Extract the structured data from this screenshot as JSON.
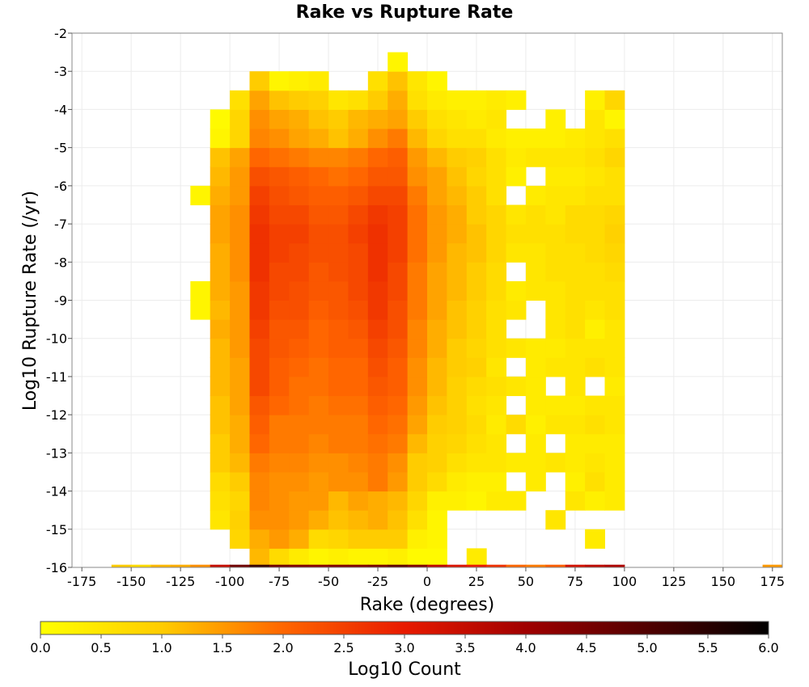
{
  "chart_data": {
    "type": "heatmap",
    "title": "Rake vs Rupture Rate",
    "xlabel": "Rake (degrees)",
    "ylabel": "Log10 Rupture Rate (/yr)",
    "xlim": [
      -180,
      180
    ],
    "ylim": [
      -16,
      -2
    ],
    "x_ticks": [
      -175,
      -150,
      -125,
      -100,
      -75,
      -50,
      -25,
      0,
      25,
      50,
      75,
      100,
      125,
      150,
      175
    ],
    "y_ticks": [
      -2,
      -3,
      -4,
      -5,
      -6,
      -7,
      -8,
      -9,
      -10,
      -11,
      -12,
      -13,
      -14,
      -15,
      -16
    ],
    "x_bin_width": 10,
    "y_bin_width": 0.5,
    "x_columns": [
      -115,
      -105,
      -95,
      -85,
      -75,
      -65,
      -55,
      -45,
      -35,
      -25,
      -15,
      -5,
      5,
      15,
      25,
      35,
      45,
      55,
      65,
      75,
      85,
      95
    ],
    "y_rows": [
      -15.75,
      -15.25,
      -14.75,
      -14.25,
      -13.75,
      -13.25,
      -12.75,
      -12.25,
      -11.75,
      -11.25,
      -10.75,
      -10.25,
      -9.75,
      -9.25,
      -8.75,
      -8.25,
      -7.75,
      -7.25,
      -6.75,
      -6.25,
      -5.75,
      -5.25,
      -4.75,
      -4.25,
      -3.75,
      -3.25,
      -2.75
    ],
    "grid": "x_columns left to right, y_rows bottom to top; value = Log10 Count, null = empty bin",
    "values": [
      [
        null,
        null,
        null,
        1.2,
        0.7,
        0.4,
        0.2,
        0.3,
        0.2,
        0.2,
        0.3,
        0.1,
        0.1,
        null,
        0.4,
        null,
        null,
        null,
        null,
        null,
        null,
        null
      ],
      [
        null,
        null,
        0.8,
        1.3,
        1.5,
        1.3,
        0.7,
        0.8,
        1.0,
        1.0,
        1.0,
        0.3,
        0.2,
        null,
        null,
        null,
        null,
        null,
        null,
        null,
        0.4,
        null
      ],
      [
        null,
        0.5,
        0.9,
        1.6,
        1.6,
        1.5,
        1.3,
        1.1,
        1.2,
        1.3,
        1.1,
        0.6,
        0.2,
        null,
        null,
        null,
        null,
        null,
        0.5,
        null,
        null,
        null
      ],
      [
        null,
        0.6,
        0.8,
        1.7,
        1.6,
        1.5,
        1.5,
        1.2,
        1.4,
        1.3,
        1.2,
        0.8,
        0.3,
        0.3,
        0.2,
        0.4,
        0.4,
        null,
        null,
        0.5,
        0.3,
        0.4
      ],
      [
        null,
        0.7,
        1.0,
        1.7,
        1.6,
        1.6,
        1.5,
        1.6,
        1.6,
        1.8,
        1.5,
        1.0,
        0.7,
        0.4,
        0.3,
        0.3,
        null,
        0.4,
        null,
        0.3,
        0.6,
        0.4
      ],
      [
        null,
        1.0,
        1.2,
        1.8,
        1.7,
        1.7,
        1.6,
        1.6,
        1.7,
        1.8,
        1.6,
        1.0,
        0.9,
        0.6,
        0.5,
        0.5,
        0.4,
        0.4,
        0.5,
        0.4,
        0.5,
        0.4
      ],
      [
        null,
        1.0,
        1.3,
        2.0,
        1.8,
        1.8,
        1.7,
        1.8,
        1.8,
        1.9,
        1.8,
        1.2,
        0.9,
        0.8,
        0.6,
        0.5,
        null,
        0.4,
        null,
        0.4,
        0.4,
        0.4
      ],
      [
        null,
        1.1,
        1.3,
        2.1,
        1.8,
        1.8,
        1.8,
        1.8,
        1.8,
        2.0,
        1.9,
        1.4,
        1.0,
        0.9,
        0.7,
        0.4,
        0.7,
        0.3,
        0.5,
        0.5,
        0.6,
        0.5
      ],
      [
        null,
        1.1,
        1.4,
        2.2,
        2.0,
        1.9,
        1.8,
        1.9,
        1.9,
        2.1,
        2.0,
        1.5,
        1.1,
        0.9,
        0.6,
        0.5,
        null,
        0.4,
        0.4,
        0.4,
        0.5,
        0.5
      ],
      [
        null,
        1.2,
        1.4,
        2.4,
        2.1,
        1.9,
        1.9,
        2.0,
        2.0,
        2.2,
        2.1,
        1.6,
        1.2,
        0.9,
        0.7,
        0.6,
        0.5,
        0.4,
        null,
        0.5,
        null,
        0.4
      ],
      [
        null,
        1.2,
        1.4,
        2.4,
        2.1,
        2.0,
        1.9,
        2.0,
        2.0,
        2.3,
        2.1,
        1.6,
        1.2,
        1.0,
        0.9,
        0.5,
        null,
        0.4,
        0.5,
        0.5,
        0.6,
        0.5
      ],
      [
        null,
        1.2,
        1.5,
        2.4,
        2.2,
        2.1,
        2.0,
        2.1,
        2.1,
        2.4,
        2.2,
        1.7,
        1.3,
        1.0,
        0.8,
        0.6,
        0.5,
        0.4,
        0.4,
        0.5,
        0.5,
        0.5
      ],
      [
        null,
        1.3,
        1.5,
        2.5,
        2.2,
        2.2,
        2.0,
        2.1,
        2.2,
        2.5,
        2.3,
        1.7,
        1.3,
        1.1,
        0.9,
        0.6,
        null,
        null,
        0.5,
        0.6,
        0.3,
        0.5
      ],
      [
        0.2,
        1.2,
        1.5,
        2.6,
        2.3,
        2.3,
        2.1,
        2.2,
        2.3,
        2.6,
        2.3,
        1.8,
        1.4,
        1.1,
        0.9,
        0.6,
        0.5,
        null,
        0.5,
        0.6,
        0.5,
        0.6
      ],
      [
        0.2,
        1.3,
        1.5,
        2.6,
        2.4,
        2.3,
        2.2,
        2.2,
        2.4,
        2.6,
        2.4,
        1.8,
        1.4,
        1.2,
        1.0,
        0.7,
        0.4,
        0.5,
        0.5,
        0.6,
        0.6,
        0.6
      ],
      [
        null,
        1.3,
        1.6,
        2.7,
        2.4,
        2.4,
        2.2,
        2.3,
        2.4,
        2.7,
        2.4,
        1.8,
        1.4,
        1.2,
        1.0,
        0.7,
        null,
        0.5,
        0.6,
        0.6,
        0.6,
        0.7
      ],
      [
        null,
        1.3,
        1.6,
        2.7,
        2.5,
        2.4,
        2.3,
        2.3,
        2.4,
        2.7,
        2.5,
        1.9,
        1.5,
        1.2,
        1.1,
        0.8,
        0.5,
        0.5,
        0.6,
        0.6,
        0.7,
        0.8
      ],
      [
        null,
        1.4,
        1.6,
        2.7,
        2.5,
        2.5,
        2.3,
        2.3,
        2.5,
        2.7,
        2.5,
        1.9,
        1.5,
        1.3,
        1.1,
        0.8,
        0.6,
        0.6,
        0.6,
        0.7,
        0.7,
        0.9
      ],
      [
        null,
        1.4,
        1.6,
        2.6,
        2.4,
        2.4,
        2.2,
        2.2,
        2.4,
        2.6,
        2.5,
        1.9,
        1.5,
        1.3,
        1.0,
        0.8,
        0.5,
        0.6,
        0.5,
        0.7,
        0.7,
        0.8
      ],
      [
        0.2,
        1.3,
        1.5,
        2.5,
        2.3,
        2.2,
        2.1,
        2.1,
        2.2,
        2.4,
        2.4,
        1.8,
        1.4,
        1.2,
        1.0,
        0.6,
        null,
        0.4,
        0.5,
        0.5,
        0.6,
        0.6
      ],
      [
        null,
        1.2,
        1.5,
        2.3,
        2.2,
        2.1,
        2.0,
        1.9,
        2.0,
        2.2,
        2.2,
        1.6,
        1.4,
        1.1,
        0.8,
        0.6,
        0.3,
        null,
        0.4,
        0.4,
        0.5,
        0.6
      ],
      [
        null,
        1.1,
        1.4,
        2.0,
        1.9,
        1.8,
        1.7,
        1.7,
        1.8,
        2.0,
        2.1,
        1.5,
        1.2,
        1.0,
        0.9,
        0.6,
        0.4,
        0.5,
        0.5,
        0.5,
        0.6,
        0.8
      ],
      [
        null,
        0.2,
        0.8,
        1.7,
        1.6,
        1.4,
        1.3,
        1.1,
        1.3,
        1.6,
        1.8,
        1.2,
        0.8,
        0.6,
        0.6,
        0.4,
        0.3,
        0.3,
        0.3,
        0.4,
        0.5,
        0.6
      ],
      [
        null,
        0.1,
        0.8,
        1.6,
        1.4,
        1.3,
        1.1,
        1.0,
        1.2,
        1.3,
        1.4,
        1.0,
        0.6,
        0.5,
        0.4,
        0.5,
        null,
        null,
        0.3,
        null,
        0.5,
        0.2
      ],
      [
        null,
        null,
        0.6,
        1.4,
        1.1,
        1.0,
        0.9,
        0.5,
        0.6,
        1.0,
        1.3,
        0.6,
        0.4,
        0.3,
        0.3,
        0.4,
        0.3,
        null,
        null,
        null,
        0.3,
        0.8
      ],
      [
        null,
        null,
        null,
        1.0,
        0.2,
        0.3,
        0.4,
        null,
        null,
        0.6,
        1.1,
        0.5,
        0.2,
        null,
        null,
        null,
        null,
        null,
        null,
        null,
        null,
        null
      ],
      [
        null,
        null,
        null,
        null,
        null,
        null,
        null,
        null,
        null,
        null,
        0.2,
        null,
        null,
        null,
        null,
        null,
        null,
        null,
        null,
        null,
        null,
        null
      ]
    ],
    "bottom_row_bins": [
      {
        "rake": -155,
        "value": 1.0
      },
      {
        "rake": -145,
        "value": 0.7
      },
      {
        "rake": -135,
        "value": 1.2
      },
      {
        "rake": -125,
        "value": 1.3
      },
      {
        "rake": -115,
        "value": 1.6
      },
      {
        "rake": -105,
        "value": 3.5
      },
      {
        "rake": -95,
        "value": 4.6
      },
      {
        "rake": -85,
        "value": 5.3
      },
      {
        "rake": -75,
        "value": 4.6
      },
      {
        "rake": -65,
        "value": 4.4
      },
      {
        "rake": -55,
        "value": 4.3
      },
      {
        "rake": -45,
        "value": 4.4
      },
      {
        "rake": -35,
        "value": 4.4
      },
      {
        "rake": -25,
        "value": 4.5
      },
      {
        "rake": -15,
        "value": 4.8
      },
      {
        "rake": -5,
        "value": 4.4
      },
      {
        "rake": 5,
        "value": 3.6
      },
      {
        "rake": 15,
        "value": 3.2
      },
      {
        "rake": 25,
        "value": 3.0
      },
      {
        "rake": 35,
        "value": 2.7
      },
      {
        "rake": 45,
        "value": 2.0
      },
      {
        "rake": 55,
        "value": 1.8
      },
      {
        "rake": 65,
        "value": 2.1
      },
      {
        "rake": 75,
        "value": 3.3
      },
      {
        "rake": 85,
        "value": 3.6
      },
      {
        "rake": 95,
        "value": 3.8
      },
      {
        "rake": 175,
        "value": 1.5
      }
    ],
    "colorbar": {
      "label": "Log10 Count",
      "range": [
        0.0,
        6.0
      ],
      "ticks": [
        "0.0",
        "0.5",
        "1.0",
        "1.5",
        "2.0",
        "2.5",
        "3.0",
        "3.5",
        "4.0",
        "4.5",
        "5.0",
        "5.5",
        "6.0"
      ],
      "stops": [
        {
          "v": 0.0,
          "color": "#ffff00"
        },
        {
          "v": 1.0,
          "color": "#ffcc00"
        },
        {
          "v": 2.0,
          "color": "#ff6600"
        },
        {
          "v": 3.0,
          "color": "#e81a00"
        },
        {
          "v": 4.0,
          "color": "#a00000"
        },
        {
          "v": 5.0,
          "color": "#500000"
        },
        {
          "v": 6.0,
          "color": "#000000"
        }
      ]
    },
    "grid_lines": true,
    "legend": "colorbar-bottom"
  }
}
